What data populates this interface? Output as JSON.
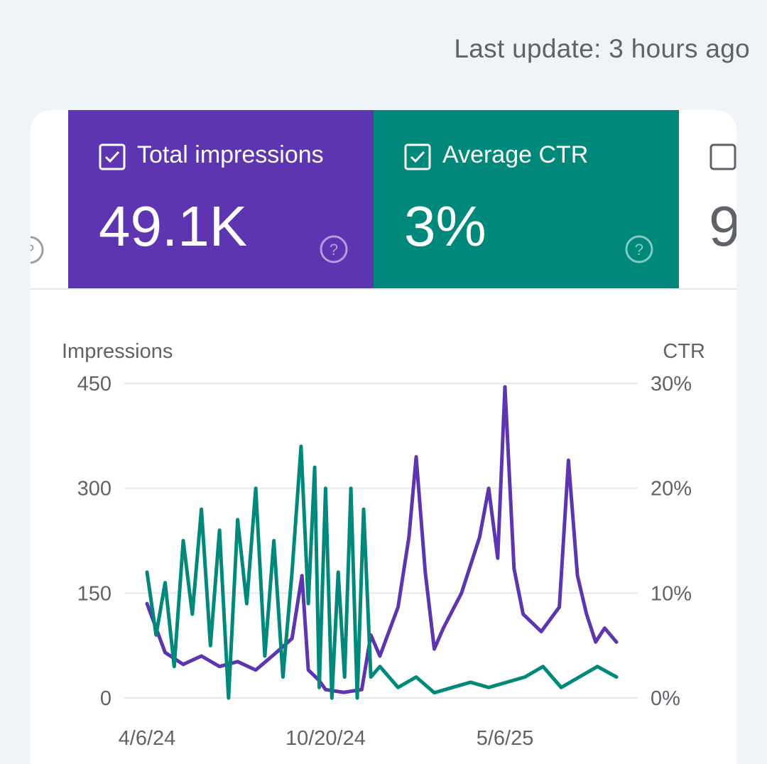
{
  "header": {
    "last_update": "Last update: 3 hours ago"
  },
  "tiles": [
    {
      "label": "Total impressions",
      "value": "49.1K",
      "checked": true,
      "color": "#5e35b1"
    },
    {
      "label": "Average CTR",
      "value": "3%",
      "checked": true,
      "color": "#00897b"
    },
    {
      "value": "9",
      "checked": false
    }
  ],
  "colors": {
    "impressions": "#5e35b1",
    "ctr": "#00897b",
    "grid": "#e6e8eb",
    "axis_text": "#5f6368"
  },
  "chart_data": {
    "type": "line",
    "y_left_label": "Impressions",
    "y_right_label": "CTR",
    "y_left_ticks": [
      "450",
      "300",
      "150",
      "0"
    ],
    "y_left_range": [
      0,
      450
    ],
    "y_right_ticks": [
      "30%",
      "20%",
      "10%",
      "0%"
    ],
    "y_right_range": [
      0,
      30
    ],
    "x_ticks": [
      {
        "label": "4/6/24",
        "date": "2024-04-06"
      },
      {
        "label": "10/20/24",
        "date": "2024-10-20"
      },
      {
        "label": "5/6/25",
        "date": "2025-05-06"
      }
    ],
    "x_range": [
      "2024-04-06",
      "2025-09-06"
    ],
    "grid": true,
    "series": [
      {
        "name": "Total impressions",
        "axis": "left",
        "color": "#5e35b1",
        "points": [
          [
            "2024-04-06",
            135
          ],
          [
            "2024-04-26",
            65
          ],
          [
            "2024-05-16",
            48
          ],
          [
            "2024-06-05",
            60
          ],
          [
            "2024-06-25",
            45
          ],
          [
            "2024-07-15",
            52
          ],
          [
            "2024-08-04",
            40
          ],
          [
            "2024-08-24",
            62
          ],
          [
            "2024-09-13",
            85
          ],
          [
            "2024-09-24",
            175
          ],
          [
            "2024-10-01",
            40
          ],
          [
            "2024-10-13",
            25
          ],
          [
            "2024-10-20",
            12
          ],
          [
            "2024-11-09",
            8
          ],
          [
            "2024-11-29",
            12
          ],
          [
            "2024-12-09",
            90
          ],
          [
            "2024-12-19",
            60
          ],
          [
            "2025-01-08",
            130
          ],
          [
            "2025-01-20",
            230
          ],
          [
            "2025-01-28",
            345
          ],
          [
            "2025-02-07",
            180
          ],
          [
            "2025-02-17",
            70
          ],
          [
            "2025-02-27",
            100
          ],
          [
            "2025-03-19",
            150
          ],
          [
            "2025-04-08",
            230
          ],
          [
            "2025-04-18",
            300
          ],
          [
            "2025-04-28",
            200
          ],
          [
            "2025-05-06",
            445
          ],
          [
            "2025-05-16",
            185
          ],
          [
            "2025-05-26",
            120
          ],
          [
            "2025-06-15",
            95
          ],
          [
            "2025-07-05",
            130
          ],
          [
            "2025-07-15",
            340
          ],
          [
            "2025-07-25",
            175
          ],
          [
            "2025-08-04",
            120
          ],
          [
            "2025-08-14",
            80
          ],
          [
            "2025-08-24",
            100
          ],
          [
            "2025-09-06",
            80
          ]
        ]
      },
      {
        "name": "Average CTR",
        "axis": "right",
        "color": "#00897b",
        "points": [
          [
            "2024-04-06",
            12
          ],
          [
            "2024-04-16",
            6
          ],
          [
            "2024-04-26",
            11
          ],
          [
            "2024-05-06",
            3
          ],
          [
            "2024-05-16",
            15
          ],
          [
            "2024-05-26",
            8
          ],
          [
            "2024-06-05",
            18
          ],
          [
            "2024-06-15",
            5
          ],
          [
            "2024-06-25",
            16
          ],
          [
            "2024-07-05",
            0
          ],
          [
            "2024-07-15",
            17
          ],
          [
            "2024-07-25",
            9
          ],
          [
            "2024-08-04",
            20
          ],
          [
            "2024-08-14",
            4
          ],
          [
            "2024-08-24",
            15
          ],
          [
            "2024-09-03",
            2
          ],
          [
            "2024-09-13",
            12
          ],
          [
            "2024-09-23",
            24
          ],
          [
            "2024-10-01",
            9
          ],
          [
            "2024-10-08",
            22
          ],
          [
            "2024-10-13",
            1
          ],
          [
            "2024-10-20",
            20
          ],
          [
            "2024-10-27",
            0
          ],
          [
            "2024-11-03",
            12
          ],
          [
            "2024-11-10",
            2
          ],
          [
            "2024-11-17",
            20
          ],
          [
            "2024-11-24",
            0
          ],
          [
            "2024-12-01",
            18
          ],
          [
            "2024-12-09",
            2
          ],
          [
            "2024-12-19",
            3
          ],
          [
            "2025-01-08",
            1
          ],
          [
            "2025-01-28",
            2
          ],
          [
            "2025-02-17",
            0.5
          ],
          [
            "2025-03-09",
            1
          ],
          [
            "2025-03-29",
            1.5
          ],
          [
            "2025-04-18",
            1
          ],
          [
            "2025-05-08",
            1.5
          ],
          [
            "2025-05-28",
            2
          ],
          [
            "2025-06-17",
            3
          ],
          [
            "2025-07-07",
            1
          ],
          [
            "2025-07-27",
            2
          ],
          [
            "2025-08-16",
            3
          ],
          [
            "2025-09-06",
            2
          ]
        ]
      }
    ]
  }
}
